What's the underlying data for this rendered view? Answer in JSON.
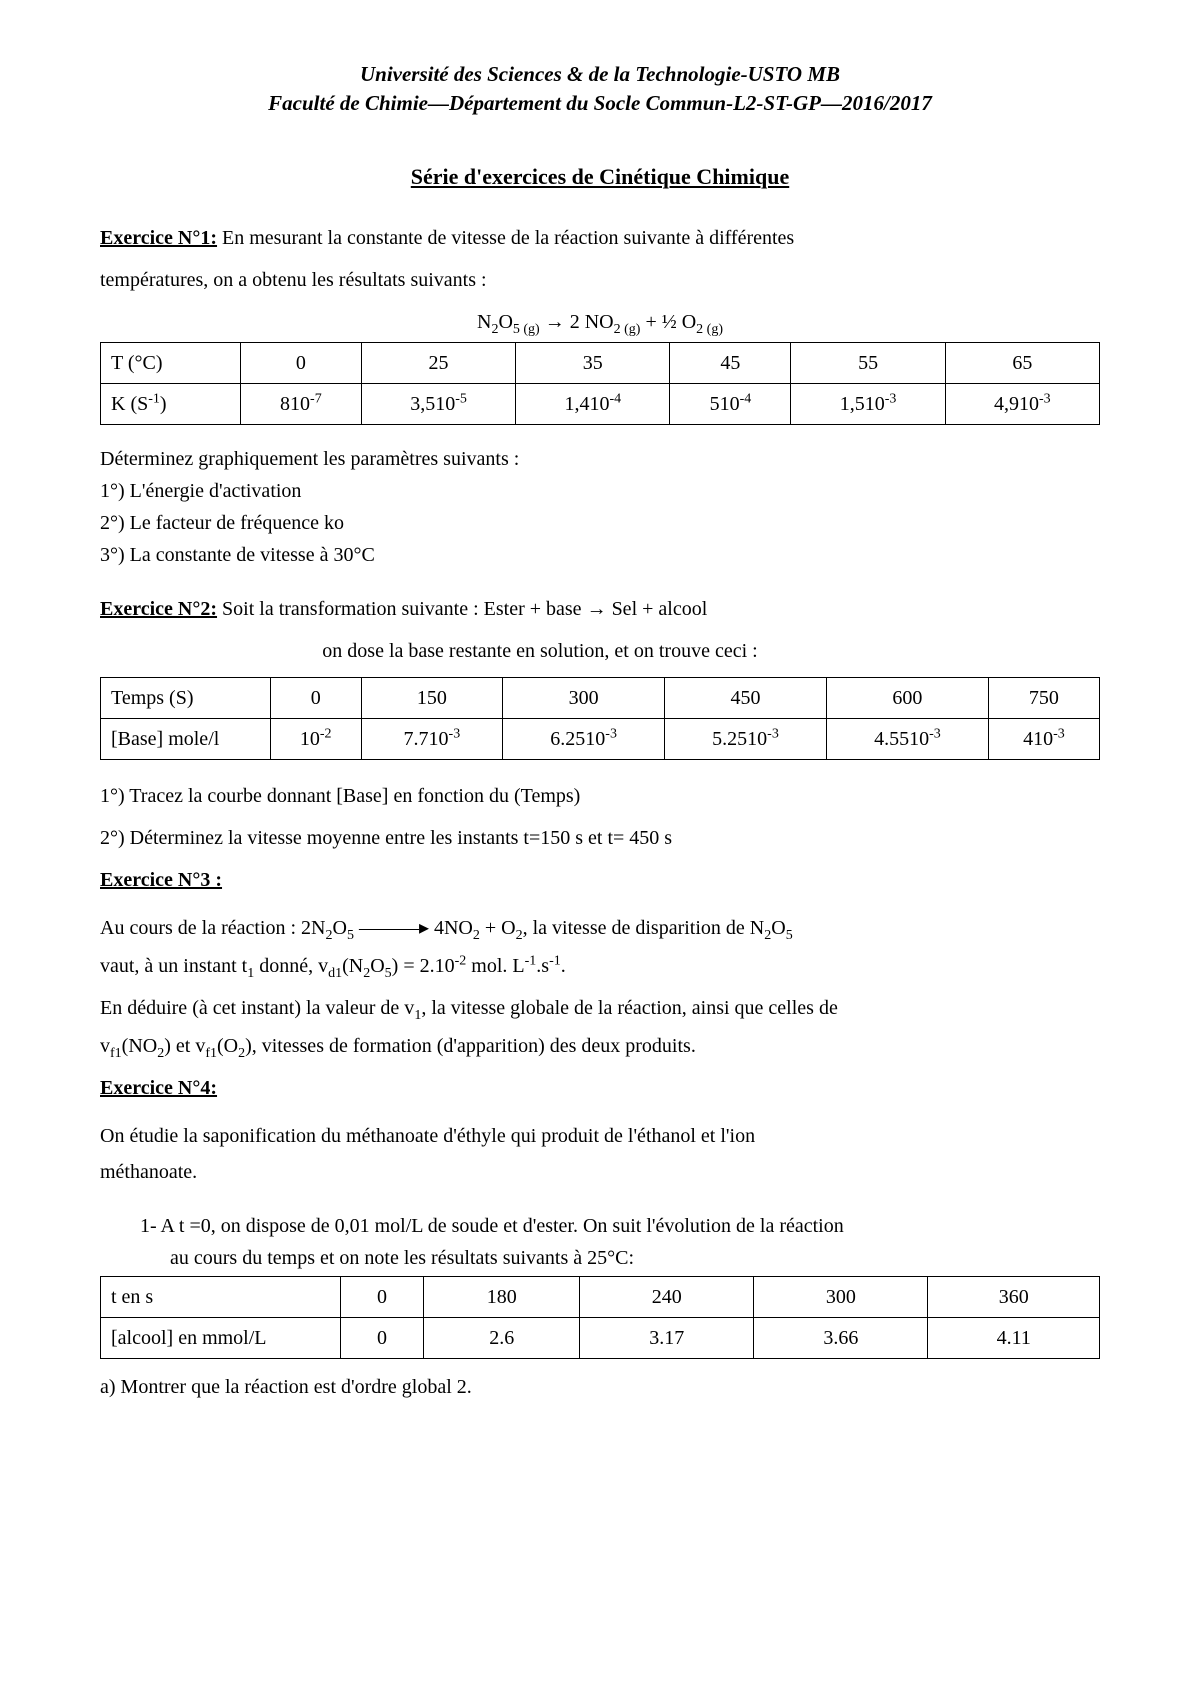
{
  "header": {
    "line1": "Université des Sciences & de la Technologie-USTO MB",
    "line2": "Faculté de Chimie—Département du Socle Commun-L2-ST-GP—2016/2017"
  },
  "title": "Série d'exercices de Cinétique Chimique",
  "ex1": {
    "heading": "Exercice N°1:",
    "intro_a": " En mesurant la constante de vitesse de la réaction suivante à différentes",
    "intro_b": "températures, on a obtenu les résultats suivants :",
    "reaction": "N₂O₅ (g) → 2 NO₂ (g) + ½ O₂ (g)",
    "table": {
      "row1_label": "T (°C)",
      "row2_label_html": "K (S<sup>-1</sup>)",
      "cols": [
        "0",
        "25",
        "35",
        "45",
        "55",
        "65"
      ],
      "vals_html": [
        "810<sup>-7</sup>",
        "3,510<sup>-5</sup>",
        "1,410<sup>-4</sup>",
        "510<sup>-4</sup>",
        "1,510<sup>-3</sup>",
        "4,910<sup>-3</sup>"
      ]
    },
    "q_intro": "Déterminez graphiquement les paramètres suivants :",
    "q1": "1°) L'énergie d'activation",
    "q2": "2°) Le facteur de fréquence ko",
    "q3": "3°) La constante de vitesse à 30°C"
  },
  "ex2": {
    "heading": "Exercice N°2:",
    "intro_a": " Soit la transformation suivante : Ester + base → Sel + alcool",
    "intro_b": "on dose la base restante en solution, et on trouve ceci :",
    "table": {
      "row1_label": "Temps (S)",
      "row2_label": "[Base] mole/l",
      "cols": [
        "0",
        "150",
        "300",
        "450",
        "600",
        "750"
      ],
      "vals_html": [
        "10<sup>-2</sup>",
        "7.710<sup>-3</sup>",
        "6.2510<sup>-3</sup>",
        "5.2510<sup>-3</sup>",
        "4.5510<sup>-3</sup>",
        "410<sup>-3</sup>"
      ]
    },
    "q1": "1°) Tracez la courbe donnant [Base] en fonction du (Temps)",
    "q2": "2°) Déterminez la vitesse moyenne entre les instants t=150 s et t= 450 s"
  },
  "ex3": {
    "heading": "Exercice N°3 :",
    "p1_html": "Au cours de la réaction : 2N<sub>2</sub>O<sub>5</sub>  ———▸  4NO<sub>2</sub> + O<sub>2</sub>, la vitesse de disparition de N<sub>2</sub>O<sub>5</sub>",
    "p2_html": "vaut, à un instant t<sub>1</sub> donné, v<sub>d1</sub>(N<sub>2</sub>O<sub>5</sub>) = 2.10<sup>-2</sup> mol. L<sup>-1</sup>.s<sup>-1</sup>.",
    "p3_html": "En déduire (à cet instant) la valeur de v<sub>1</sub>, la vitesse globale de la réaction, ainsi que celles de",
    "p4_html": "v<sub>f1</sub>(NO<sub>2</sub>) et v<sub>f1</sub>(O<sub>2</sub>), vitesses de formation (d'apparition) des deux produits."
  },
  "ex4": {
    "heading": "Exercice N°4:",
    "intro1": "On étudie la saponification du méthanoate d'éthyle qui produit de l'éthanol et l'ion",
    "intro2": "méthanoate.",
    "item1a": "1-  A t =0, on dispose de 0,01 mol/L de soude et d'ester. On suit l'évolution de la réaction",
    "item1b": "au cours du temps et on note les résultats suivants à 25°C:",
    "table": {
      "row1_label": "t en s",
      "row2_label": "[alcool] en mmol/L",
      "cols": [
        "0",
        "180",
        "240",
        "300",
        "360"
      ],
      "vals": [
        "0",
        "2.6",
        "3.17",
        "3.66",
        "4.11"
      ]
    },
    "qa": "a)  Montrer que la réaction est d'ordre global 2."
  }
}
